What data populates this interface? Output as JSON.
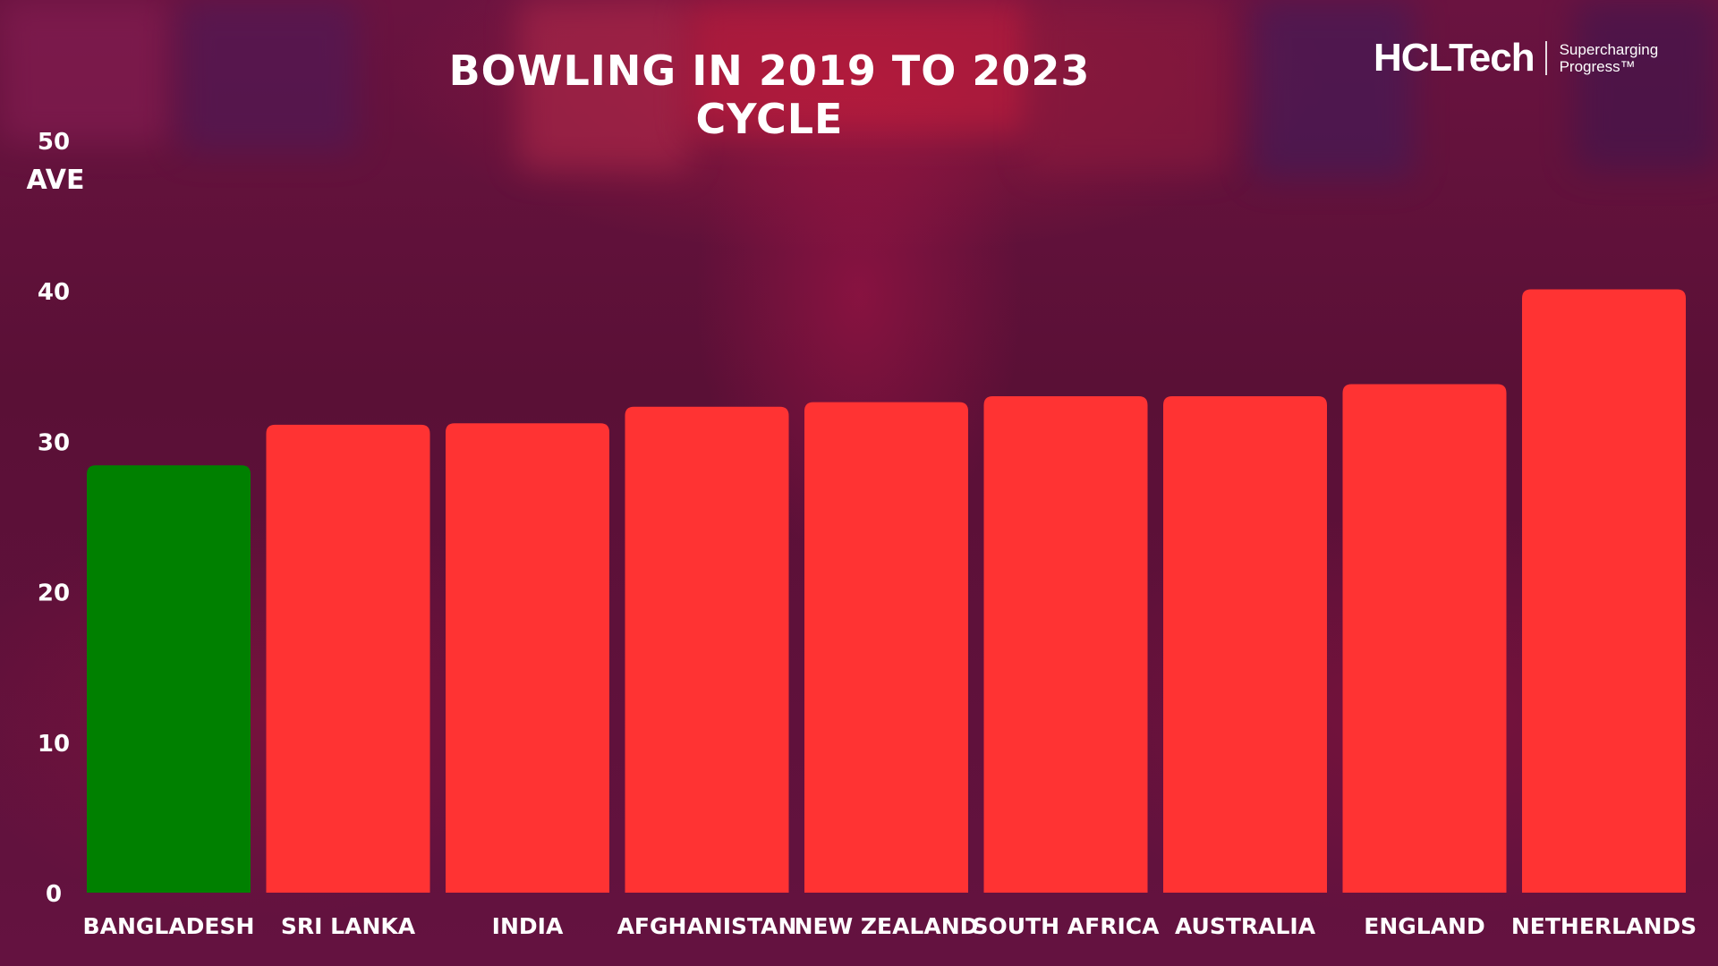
{
  "header": {
    "title": "BOWLING IN 2019 TO 2023 CYCLE"
  },
  "logo": {
    "name": "HCLTech",
    "tagline_line1": "Supercharging",
    "tagline_line2": "Progress™"
  },
  "colors": {
    "highlight": "#008000",
    "default_bar": "#ff3333",
    "background": "#5e1238",
    "text": "#ffffff"
  },
  "chart_data": {
    "type": "bar",
    "title": "BOWLING IN 2019 TO 2023 CYCLE",
    "ylabel": "AVE",
    "xlabel": "",
    "ylim": [
      0,
      50
    ],
    "yticks": [
      0,
      10,
      20,
      30,
      40,
      50
    ],
    "grid": false,
    "categories": [
      "BANGLADESH",
      "SRI LANKA",
      "INDIA",
      "AFGHANISTAN",
      "NEW ZEALAND",
      "SOUTH AFRICA",
      "AUSTRALIA",
      "ENGLAND",
      "NETHERLANDS"
    ],
    "values": [
      28.4,
      31.1,
      31.2,
      32.3,
      32.6,
      33.0,
      33.0,
      33.8,
      40.1
    ],
    "highlighted_category": "BANGLADESH"
  }
}
